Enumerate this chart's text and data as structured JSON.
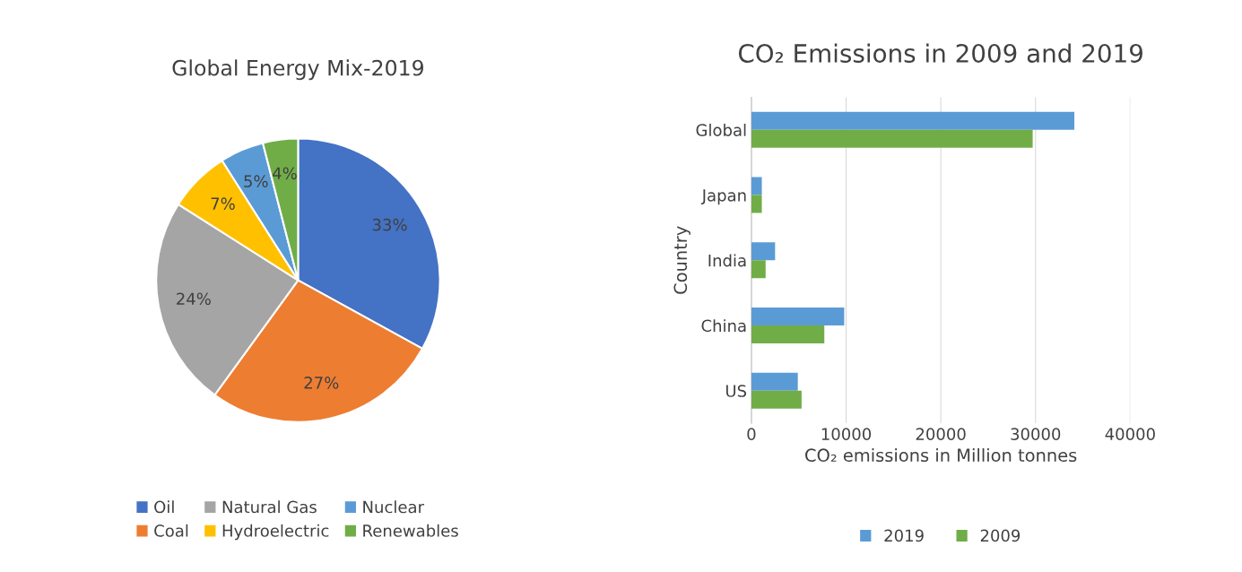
{
  "chart_data": [
    {
      "type": "pie",
      "title": "Global Energy Mix-2019",
      "categories": [
        "Oil",
        "Coal",
        "Natural Gas",
        "Hydroelectric",
        "Nuclear",
        "Renewables"
      ],
      "values": [
        33,
        27,
        24,
        7,
        5,
        4
      ],
      "colors": [
        "#4472c4",
        "#ed7d31",
        "#a5a5a5",
        "#ffc000",
        "#5b9bd5",
        "#70ad47"
      ],
      "value_labels": [
        "33%",
        "27%",
        "24%",
        "7%",
        "5%",
        "4%"
      ],
      "legend": "bottom"
    },
    {
      "type": "bar",
      "orientation": "horizontal",
      "title": "CO₂ Emissions in 2009 and 2019",
      "xlabel": "CO₂ emissions in Million tonnes",
      "ylabel": "Country",
      "categories": [
        "Global",
        "Japan",
        "India",
        "China",
        "US"
      ],
      "series": [
        {
          "name": "2019",
          "color": "#5b9bd5",
          "values": [
            34100,
            1100,
            2500,
            9800,
            4900
          ]
        },
        {
          "name": "2009",
          "color": "#70ad47",
          "values": [
            29700,
            1100,
            1500,
            7700,
            5300
          ]
        }
      ],
      "xlim": [
        0,
        40000
      ],
      "xticks": [
        0,
        10000,
        20000,
        30000,
        40000
      ],
      "grid": "x",
      "legend": "bottom"
    }
  ]
}
